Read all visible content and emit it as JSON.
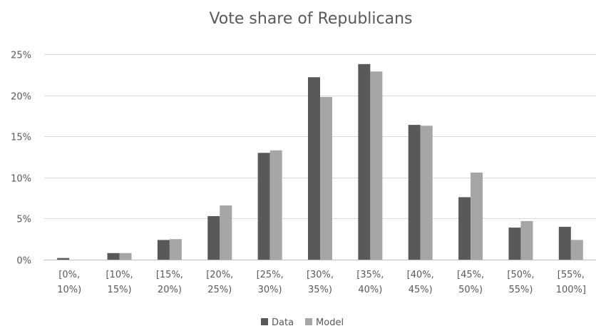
{
  "chart_data": {
    "type": "bar",
    "title": "Vote share of Republicans",
    "categories": [
      [
        "[0%,",
        "10%)"
      ],
      [
        "[10%,",
        "15%)"
      ],
      [
        "[15%,",
        "20%)"
      ],
      [
        "[20%,",
        "25%)"
      ],
      [
        "[25%,",
        "30%)"
      ],
      [
        "[30%,",
        "35%)"
      ],
      [
        "[35%,",
        "40%)"
      ],
      [
        "[40%,",
        "45%)"
      ],
      [
        "[45%,",
        "50%)"
      ],
      [
        "[50%,",
        "55%)"
      ],
      [
        "[55%,",
        "100%]"
      ]
    ],
    "series": [
      {
        "name": "Data",
        "color": "#595959",
        "values": [
          0.2,
          0.8,
          2.4,
          5.3,
          13.0,
          22.2,
          23.8,
          16.4,
          7.6,
          3.9,
          4.0
        ]
      },
      {
        "name": "Model",
        "color": "#a6a6a6",
        "values": [
          0.0,
          0.8,
          2.5,
          6.6,
          13.3,
          19.8,
          22.9,
          16.3,
          10.6,
          4.7,
          2.4
        ]
      }
    ],
    "ylim": [
      0,
      25
    ],
    "yticks": [
      "0%",
      "5%",
      "10%",
      "15%",
      "20%",
      "25%"
    ],
    "ytick_values": [
      0,
      5,
      10,
      15,
      20,
      25
    ],
    "grid": true,
    "legend": "bottom"
  }
}
